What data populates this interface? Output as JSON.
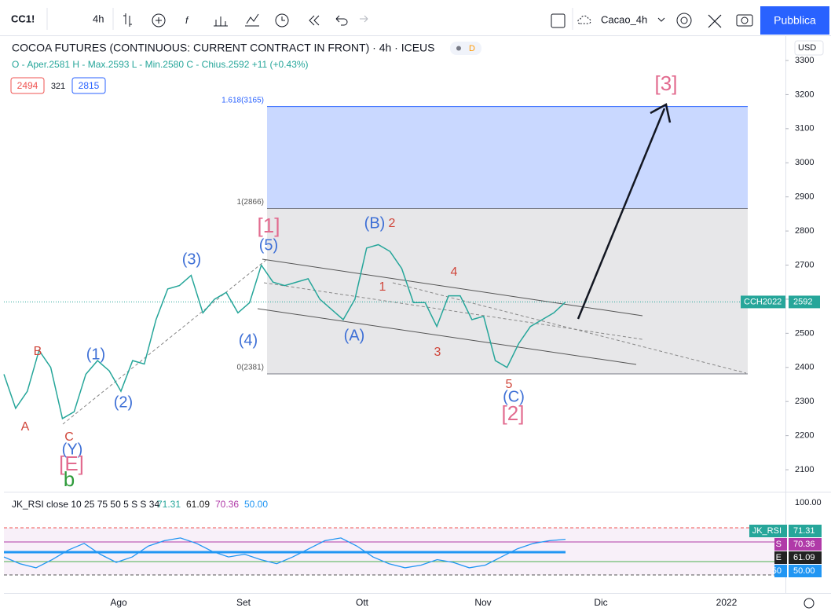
{
  "toolbar": {
    "symbol": "CC1!",
    "interval": "4h",
    "layout_name": "Cacao_4h",
    "publish": "Pubblica"
  },
  "legend": {
    "title": "COCOA FUTURES (CONTINUOUS: CURRENT CONTRACT IN FRONT) · 4h · ICEUS",
    "delay_badge": "D",
    "ohlc": "O - Aper.2581 H - Max.2593 L - Min.2580 C - Chius.2592 +11 (+0.43%)",
    "bid": "2494",
    "spread": "321",
    "ask": "2815"
  },
  "currency": "USD",
  "price_axis": {
    "ylim": [
      2050,
      3330
    ],
    "yticks": [
      3300,
      3200,
      3100,
      3000,
      2900,
      2800,
      2700,
      2600,
      2500,
      2400,
      2300,
      2200,
      2100
    ]
  },
  "time_axis": {
    "labels": [
      "Ago",
      "Set",
      "Ott",
      "Nov",
      "Dic",
      "2022"
    ]
  },
  "last_price": {
    "symbol": "CCH2022",
    "price": 2592
  },
  "price_path": [
    2380,
    2280,
    2330,
    2450,
    2400,
    2250,
    2270,
    2380,
    2420,
    2390,
    2330,
    2420,
    2410,
    2540,
    2630,
    2640,
    2670,
    2560,
    2600,
    2620,
    2560,
    2590,
    2700,
    2650,
    2640,
    2650,
    2660,
    2600,
    2570,
    2540,
    2600,
    2750,
    2760,
    2740,
    2690,
    2590,
    2590,
    2520,
    2610,
    2610,
    2540,
    2550,
    2420,
    2400,
    2470,
    2520,
    2540,
    2560,
    2592
  ],
  "fib_levels": [
    {
      "label": "1.618(3165)",
      "price": 3165
    },
    {
      "label": "1(2866)",
      "price": 2866
    },
    {
      "label": "0(2381)",
      "price": 2381
    }
  ],
  "wave_labels": [
    {
      "text": "B",
      "color": "#d0453a"
    },
    {
      "text": "A",
      "color": "#d0453a"
    },
    {
      "text": "C",
      "color": "#d0453a"
    },
    {
      "text": "(Y)",
      "color": "#3d6fd6"
    },
    {
      "text": "[E]",
      "color": "#e26b8f"
    },
    {
      "text": "b",
      "color": "#2e9b3a"
    },
    {
      "text": "(1)",
      "color": "#3d6fd6"
    },
    {
      "text": "(2)",
      "color": "#3d6fd6"
    },
    {
      "text": "(3)",
      "color": "#3d6fd6"
    },
    {
      "text": "(4)",
      "color": "#3d6fd6"
    },
    {
      "text": "(5)",
      "color": "#3d6fd6"
    },
    {
      "text": "[1]",
      "color": "#e26b8f"
    },
    {
      "text": "(B)",
      "color": "#3d6fd6"
    },
    {
      "text": "2",
      "color": "#d0453a"
    },
    {
      "text": "1",
      "color": "#d0453a"
    },
    {
      "text": "(A)",
      "color": "#3d6fd6"
    },
    {
      "text": "4",
      "color": "#d0453a"
    },
    {
      "text": "3",
      "color": "#d0453a"
    },
    {
      "text": "5",
      "color": "#d0453a"
    },
    {
      "text": "(C)",
      "color": "#3d6fd6"
    },
    {
      "text": "[2]",
      "color": "#e26b8f"
    },
    {
      "text": "[3]",
      "color": "#e26b8f"
    }
  ],
  "rsi": {
    "title": "JK_RSI close 10 25 75 50 5 S S 34",
    "values_text": [
      "71.31",
      "61.09",
      "70.36",
      "50.00"
    ],
    "axis_top": {
      "value": 100,
      "label": "100.00"
    },
    "ylim": [
      45,
      100
    ],
    "badges": [
      {
        "name": "JK_RSI",
        "value": "71.31",
        "color": "#26a69a"
      },
      {
        "name": "S",
        "value": "70.36",
        "color": "#b03aa8"
      },
      {
        "name": "E",
        "value": "61.09",
        "color": "#222222"
      },
      {
        "name": "50",
        "value": "50.00",
        "color": "#2196f3"
      }
    ],
    "series": [
      60,
      55,
      52,
      58,
      65,
      70,
      62,
      56,
      60,
      68,
      72,
      74,
      70,
      64,
      60,
      62,
      58,
      55,
      60,
      66,
      72,
      74,
      68,
      60,
      55,
      52,
      54,
      58,
      56,
      52,
      54,
      60,
      66,
      70,
      72,
      73
    ]
  }
}
